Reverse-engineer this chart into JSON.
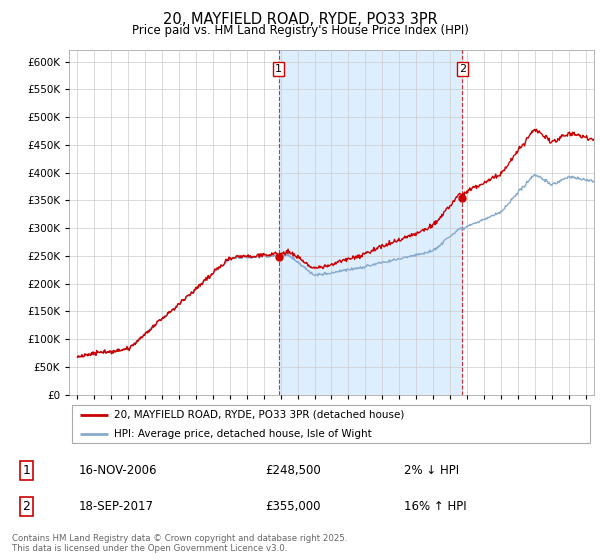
{
  "title": "20, MAYFIELD ROAD, RYDE, PO33 3PR",
  "subtitle": "Price paid vs. HM Land Registry's House Price Index (HPI)",
  "legend_line1": "20, MAYFIELD ROAD, RYDE, PO33 3PR (detached house)",
  "legend_line2": "HPI: Average price, detached house, Isle of Wight",
  "transaction1_date": "16-NOV-2006",
  "transaction1_price": "£248,500",
  "transaction1_hpi": "2% ↓ HPI",
  "transaction1_year": 2006.88,
  "transaction1_value": 248500,
  "transaction2_date": "18-SEP-2017",
  "transaction2_price": "£355,000",
  "transaction2_hpi": "16% ↑ HPI",
  "transaction2_year": 2017.72,
  "transaction2_value": 355000,
  "copyright": "Contains HM Land Registry data © Crown copyright and database right 2025.\nThis data is licensed under the Open Government Licence v3.0.",
  "line_color_red": "#cc0000",
  "line_color_blue": "#88aacc",
  "vline_color": "#cc0000",
  "fill_color": "#ddeeff",
  "grid_color": "#cccccc",
  "ylim": [
    0,
    620000
  ],
  "xlim_start": 1994.5,
  "xlim_end": 2025.5,
  "yticks": [
    0,
    50000,
    100000,
    150000,
    200000,
    250000,
    300000,
    350000,
    400000,
    450000,
    500000,
    550000,
    600000
  ]
}
